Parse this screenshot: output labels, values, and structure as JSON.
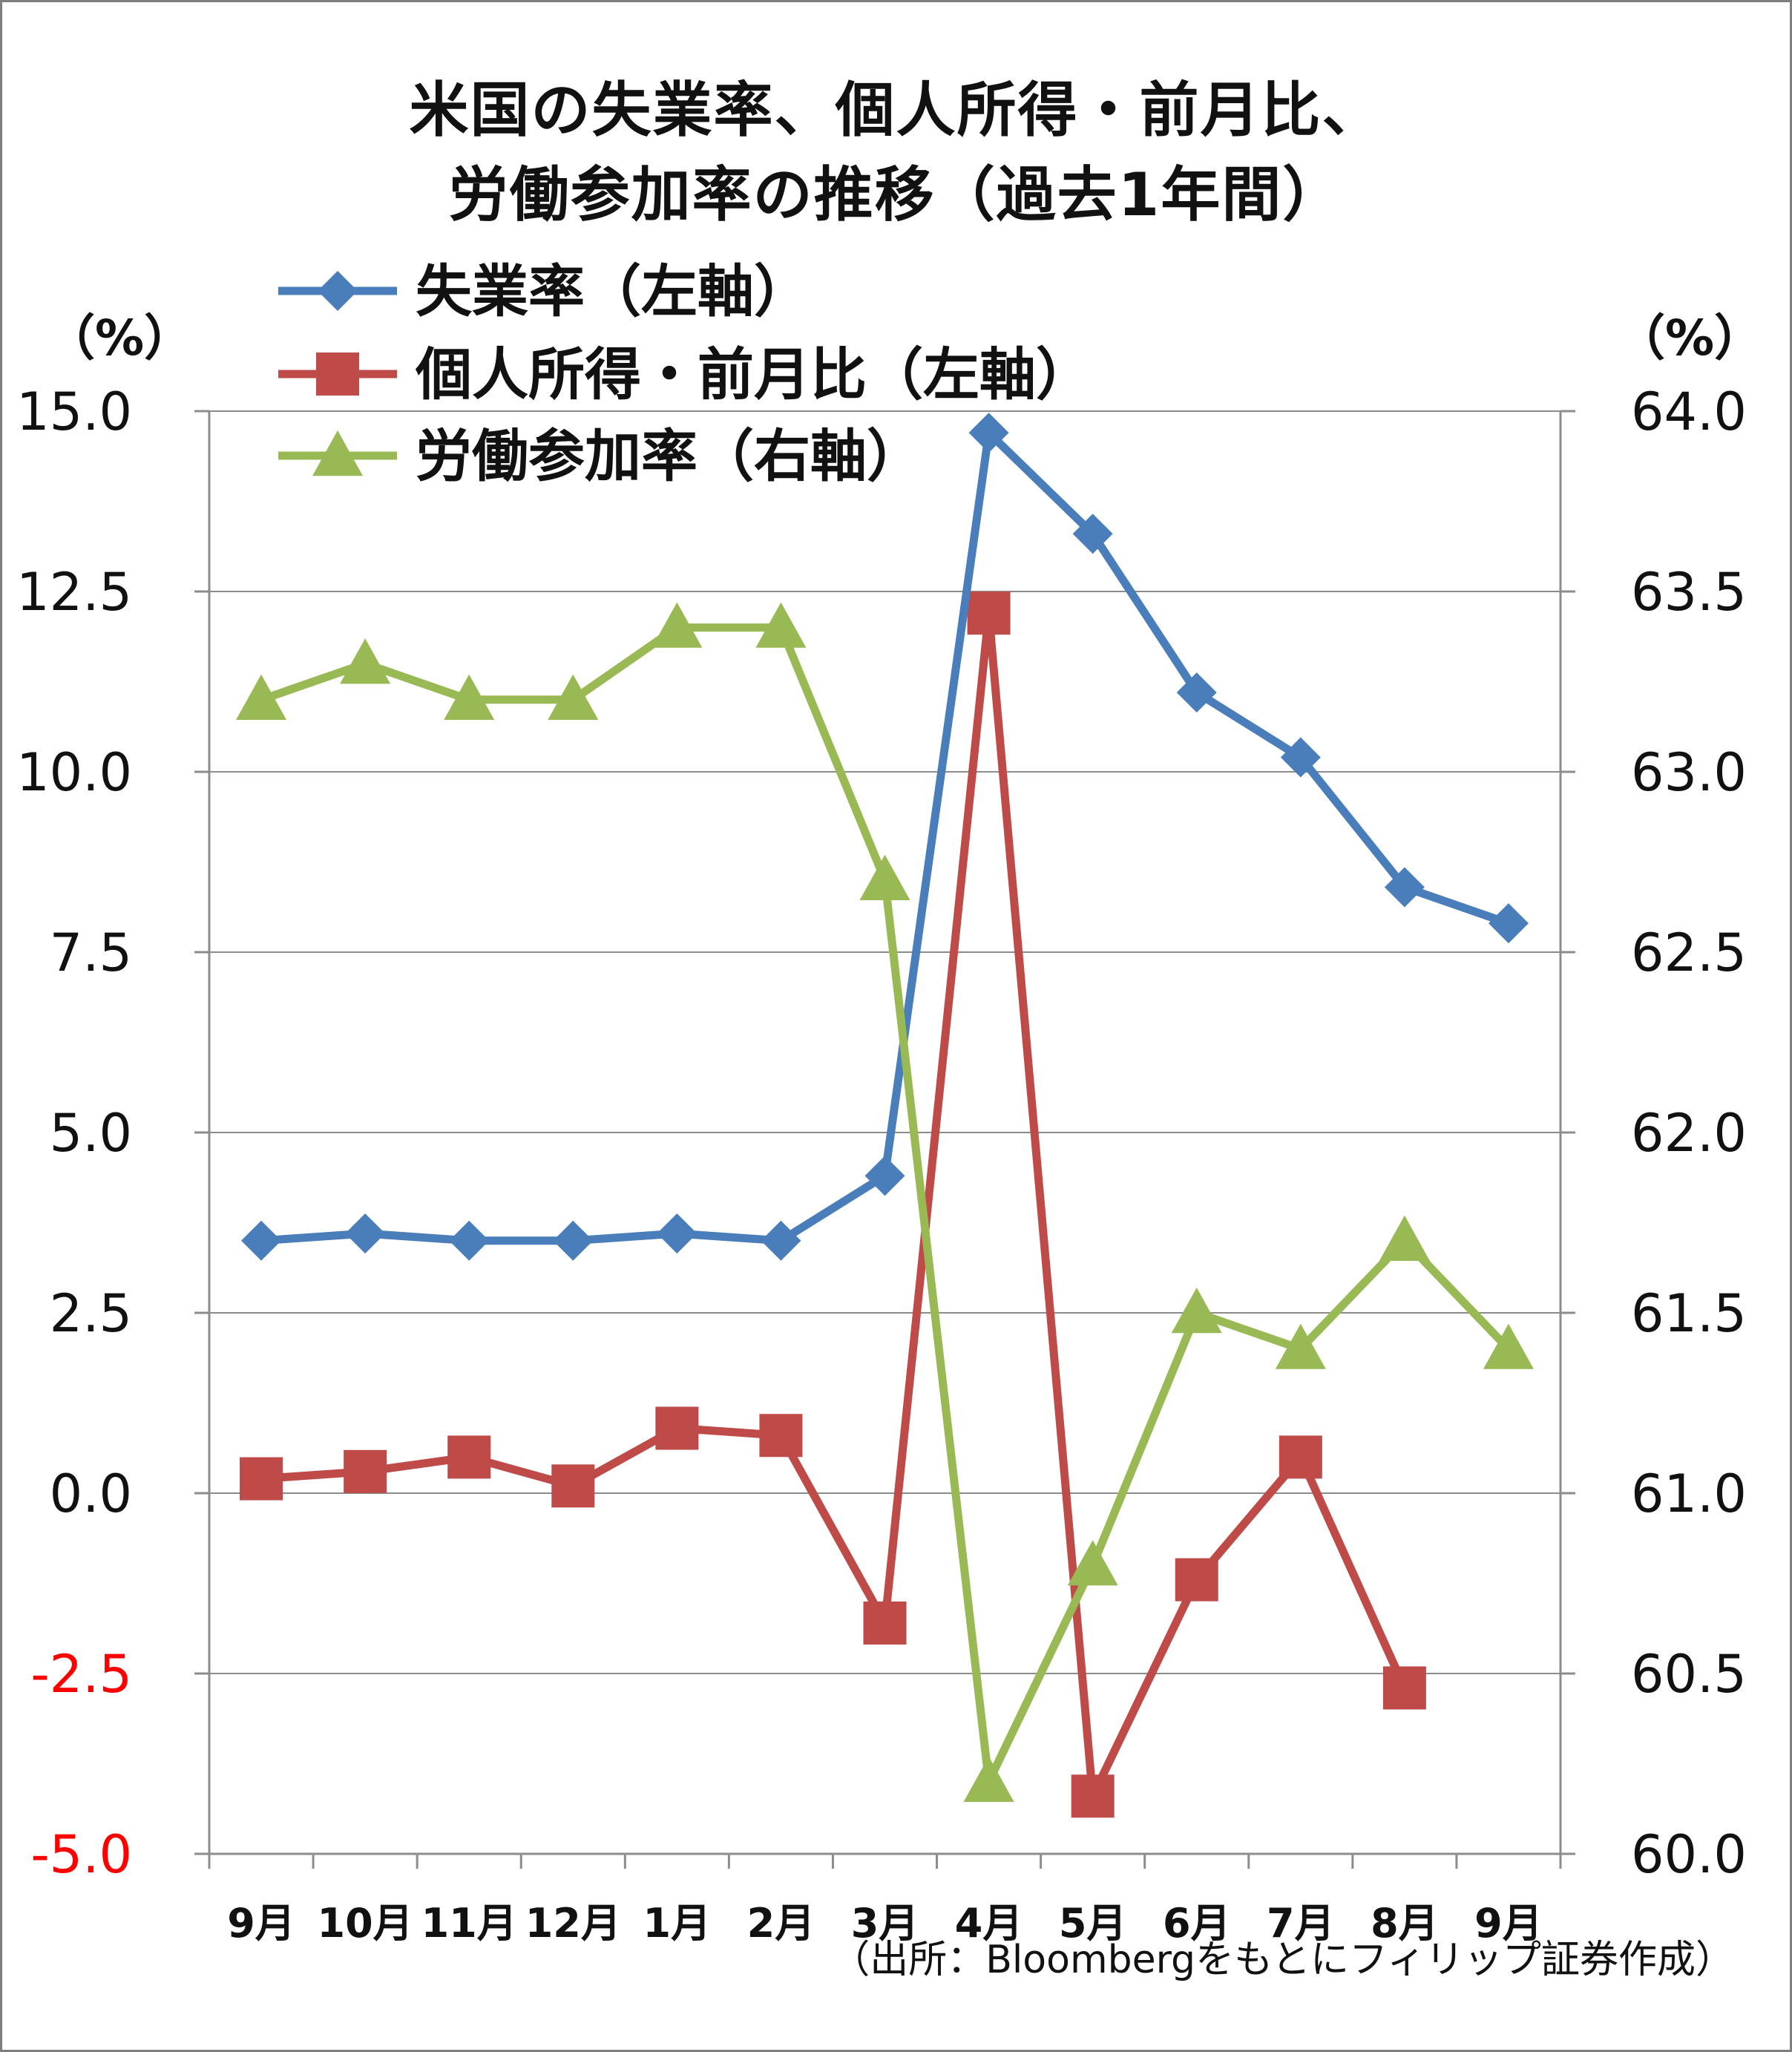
{
  "chart_data": {
    "type": "line",
    "title": "米国の失業率、個人所得・前月比、労働参加率の推移（過去1年間）",
    "title_lines": [
      "米国の失業率、個人所得・前月比、",
      "労働参加率の推移（過去1年間）"
    ],
    "left_axis_unit": "（%）",
    "right_axis_unit": "（%）",
    "categories": [
      "9月",
      "10月",
      "11月",
      "12月",
      "1月",
      "2月",
      "3月",
      "4月",
      "5月",
      "6月",
      "7月",
      "8月",
      "9月"
    ],
    "left_ylim": [
      -5.0,
      15.0
    ],
    "left_ticks": [
      "15.0",
      "12.5",
      "10.0",
      "7.5",
      "5.0",
      "2.5",
      "0.0",
      "-2.5",
      "-5.0"
    ],
    "right_ylim": [
      60.0,
      64.0
    ],
    "right_ticks": [
      "64.0",
      "63.5",
      "63.0",
      "62.5",
      "62.0",
      "61.5",
      "61.0",
      "60.5",
      "60.0"
    ],
    "negative_tick_color": "#ff0000",
    "grid": true,
    "legend_position": "top-left",
    "series": [
      {
        "name": "失業率（左軸）",
        "axis": "left",
        "color": "#4a7ebb",
        "marker": "diamond",
        "values": [
          3.5,
          3.6,
          3.5,
          3.5,
          3.6,
          3.5,
          4.4,
          14.7,
          13.3,
          11.1,
          10.2,
          8.4,
          7.9
        ]
      },
      {
        "name": "個人所得・前月比（左軸）",
        "axis": "left",
        "color": "#be4b48",
        "marker": "square",
        "values": [
          0.2,
          0.3,
          0.5,
          0.1,
          0.9,
          0.8,
          -1.8,
          12.2,
          -4.2,
          -1.2,
          0.5,
          -2.7,
          null
        ]
      },
      {
        "name": "労働参加率（右軸）",
        "axis": "right",
        "color": "#98b954",
        "marker": "triangle",
        "values": [
          63.2,
          63.3,
          63.2,
          63.2,
          63.4,
          63.4,
          62.7,
          60.2,
          60.8,
          61.5,
          61.4,
          61.7,
          61.4
        ]
      }
    ]
  },
  "source": "（出所：Bloombergをもとにフィリップ証券作成）"
}
